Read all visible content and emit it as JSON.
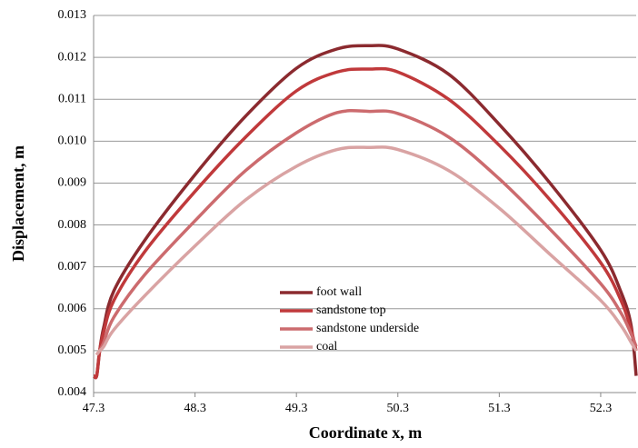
{
  "chart_data": {
    "type": "line",
    "x_label": "Coordinate x, m",
    "y_label": "Displacement, m",
    "x": [
      47.3,
      47.33,
      47.36,
      47.4,
      47.5,
      47.8,
      48.3,
      48.8,
      49.3,
      49.7,
      50.02,
      50.3,
      50.8,
      51.3,
      51.8,
      52.3,
      52.5,
      52.6,
      52.65
    ],
    "series": [
      {
        "name": "foot wall",
        "color": "#8b2a2f",
        "values": [
          0.0044,
          0.0044,
          0.005,
          0.00556,
          0.00643,
          0.00762,
          0.0092,
          0.0106,
          0.01174,
          0.0122,
          0.01228,
          0.0122,
          0.0116,
          0.0104,
          0.009,
          0.0074,
          0.0064,
          0.0056,
          0.0044
        ]
      },
      {
        "name": "sandstone top",
        "color": "#c0393b",
        "values": [
          0.0044,
          0.0044,
          0.005,
          0.00545,
          0.0062,
          0.00735,
          0.0088,
          0.0101,
          0.0112,
          0.01165,
          0.01172,
          0.01165,
          0.011,
          0.0099,
          0.0086,
          0.0071,
          0.0062,
          0.0055,
          0.005
        ]
      },
      {
        "name": "sandstone underside",
        "color": "#cc6b6e",
        "values": [
          null,
          0.0049,
          0.005,
          0.0052,
          0.0058,
          0.0068,
          0.0081,
          0.0093,
          0.0102,
          0.01068,
          0.01071,
          0.01066,
          0.0101,
          0.0091,
          0.0079,
          0.0066,
          0.0059,
          0.0054,
          0.0051
        ]
      },
      {
        "name": "coal",
        "color": "#d9a3a3",
        "values": [
          null,
          0.0049,
          0.005,
          0.0051,
          0.0055,
          0.0063,
          0.0075,
          0.0086,
          0.0094,
          0.0098,
          0.00985,
          0.0098,
          0.0093,
          0.0084,
          0.0073,
          0.0062,
          0.0056,
          0.0052,
          0.005
        ]
      }
    ],
    "xlim": [
      47.3,
      52.65
    ],
    "xticks": [
      47.3,
      48.3,
      49.3,
      50.3,
      51.3,
      52.3
    ],
    "ylim": [
      0.004,
      0.013
    ],
    "yticks": [
      0.004,
      0.005,
      0.006,
      0.007,
      0.008,
      0.009,
      {
        "value": 0.01,
        "label": "0.010"
      },
      0.011,
      0.012,
      0.013
    ],
    "grid": true
  }
}
